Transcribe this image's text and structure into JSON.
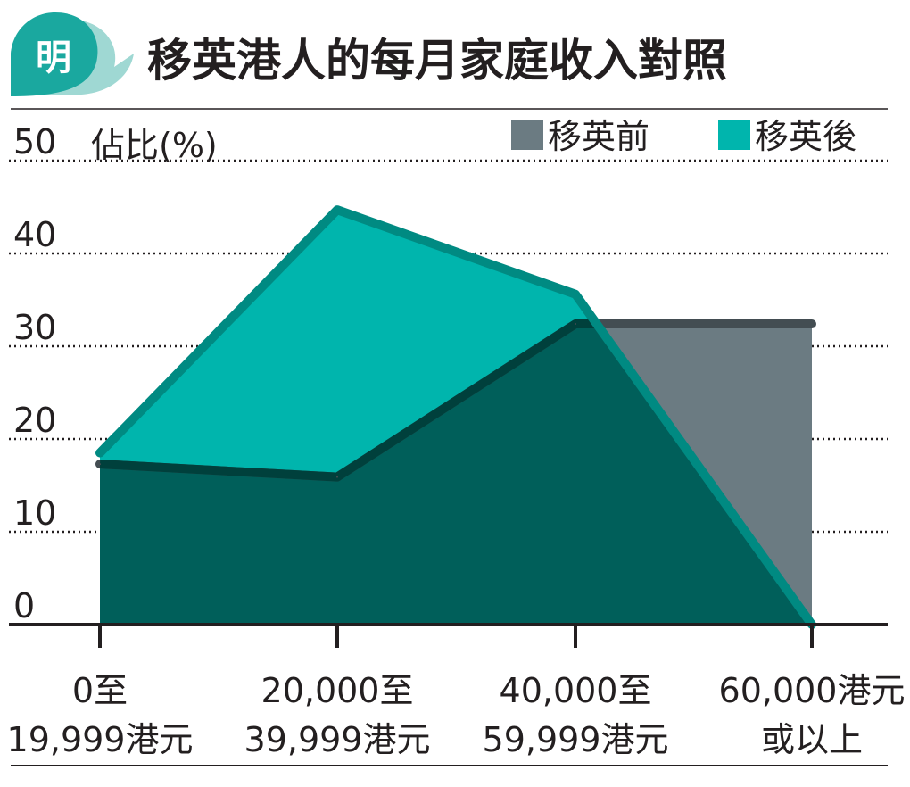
{
  "header": {
    "logo_text": "明",
    "title": "移英港人的每月家庭收入對照"
  },
  "chart_data": {
    "type": "area",
    "title": "移英港人的每月家庭收入對照",
    "ylabel": "佔比(%)",
    "xlabel": "",
    "ylim": [
      0,
      50
    ],
    "yticks": [
      0,
      10,
      20,
      30,
      40,
      50
    ],
    "grid": true,
    "grid_style": "dotted",
    "legend_position": "top-right",
    "categories": [
      [
        "0至",
        "19,999港元"
      ],
      [
        "20,000至",
        "39,999港元"
      ],
      [
        "40,000至",
        "59,999港元"
      ],
      [
        "60,000港元",
        "或以上"
      ]
    ],
    "series": [
      {
        "name": "移英前",
        "values": [
          17.3,
          15.9,
          32.4,
          32.4
        ],
        "color": "#6b7b82",
        "line_color": "#434d52"
      },
      {
        "name": "移英後",
        "values": [
          18.5,
          44.7,
          35.6,
          0
        ],
        "color": "#00b5ad",
        "line_color": "#008a82"
      }
    ],
    "overlap_color": "#005f5a"
  }
}
